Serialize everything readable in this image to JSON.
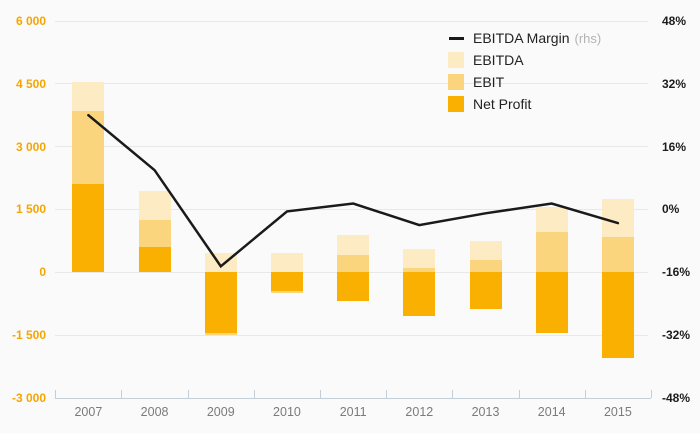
{
  "chart_data": {
    "type": "bar",
    "subtype": "overlay-bars-with-line",
    "title": "",
    "categories": [
      "2007",
      "2008",
      "2009",
      "2010",
      "2011",
      "2012",
      "2013",
      "2014",
      "2015"
    ],
    "series": [
      {
        "name": "EBITDA",
        "color": "#FDEBC3",
        "values": [
          4550,
          1950,
          450,
          450,
          900,
          550,
          750,
          1550,
          1750
        ]
      },
      {
        "name": "EBIT",
        "color": "#FBD57E",
        "values": [
          3850,
          1250,
          -1500,
          -500,
          400,
          100,
          300,
          950,
          850
        ]
      },
      {
        "name": "Net Profit",
        "color": "#F9B000",
        "values": [
          2100,
          600,
          -1450,
          -450,
          -700,
          -1050,
          -875,
          -1450,
          -2050
        ]
      }
    ],
    "line_series": {
      "name": "EBITDA Margin",
      "axis": "rhs",
      "color": "#1a1a1a",
      "values": [
        24,
        10,
        -14.5,
        -0.5,
        1.5,
        -4,
        -1,
        1.5,
        -3.5
      ]
    },
    "left_axis": {
      "min": -3000,
      "max": 6000,
      "step": 1500,
      "ticks": [
        "6 000",
        "4 500",
        "3 000",
        "1 500",
        "0",
        "-1 500",
        "-3 000"
      ],
      "color": "#f6a500"
    },
    "right_axis": {
      "min": -48,
      "max": 48,
      "step": 16,
      "ticks": [
        "48%",
        "32%",
        "16%",
        "0%",
        "-16%",
        "-32%",
        "-48%"
      ],
      "color": "#1c1c1c"
    },
    "grid": true,
    "legend_position": "top-right",
    "bar_mode": "overlay"
  },
  "legend": {
    "items": [
      {
        "label": "EBITDA Margin",
        "suffix": "(rhs)",
        "marker": "line",
        "color": "#1a1a1a"
      },
      {
        "label": "EBITDA",
        "suffix": "",
        "marker": "swatch",
        "color": "#FDEBC3"
      },
      {
        "label": "EBIT",
        "suffix": "",
        "marker": "swatch",
        "color": "#FBD57E"
      },
      {
        "label": "Net Profit",
        "suffix": "",
        "marker": "swatch",
        "color": "#F9B000"
      }
    ]
  },
  "colors": {
    "background": "#fafafa",
    "gridline": "#e8e8e8",
    "axis_line": "#c5cfd8",
    "x_labels": "#7b7b7b"
  }
}
